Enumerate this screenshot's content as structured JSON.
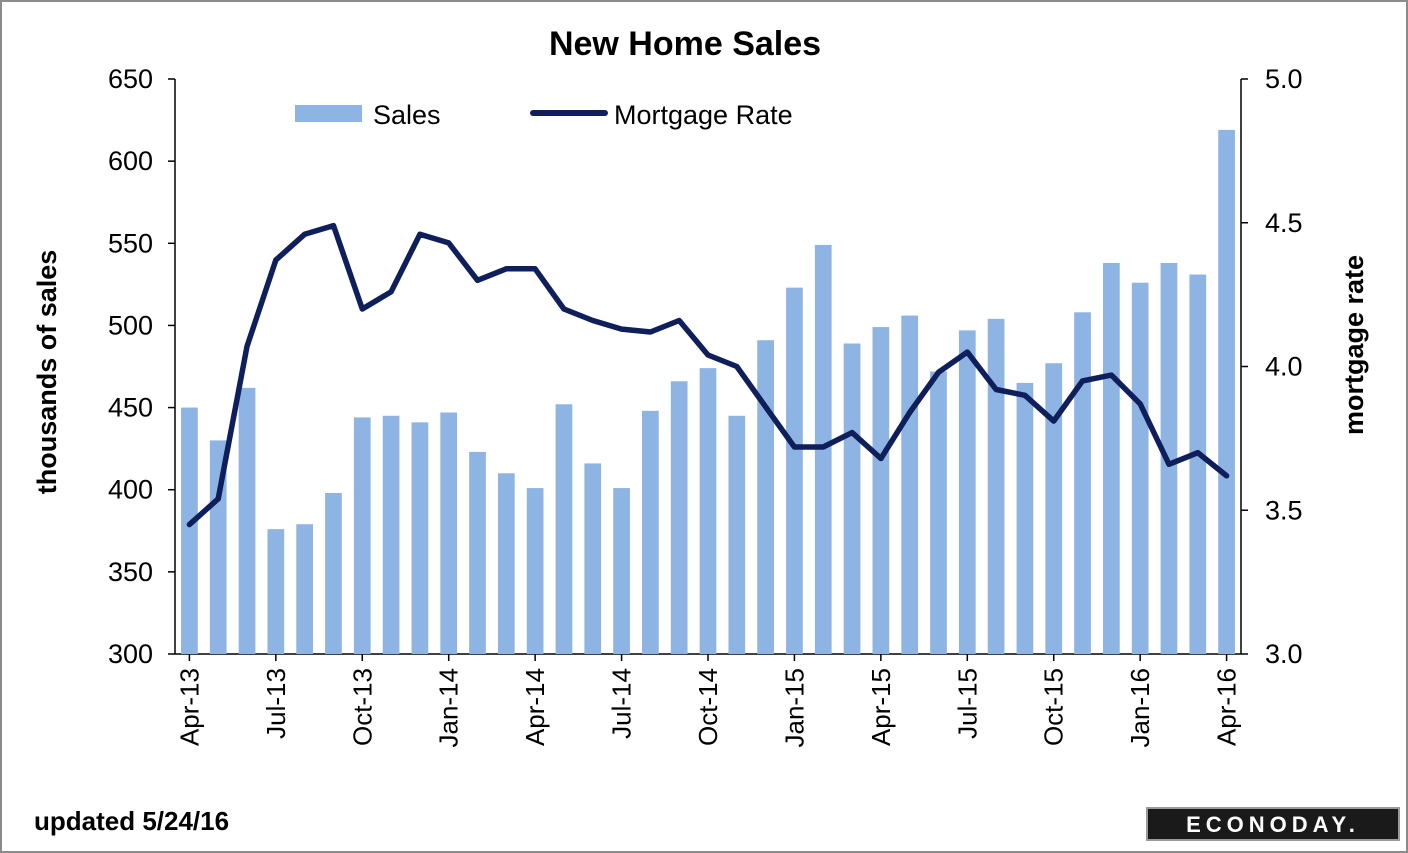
{
  "chart_data": {
    "type": "bar",
    "title": "New Home Sales",
    "ylabel": "thousands of sales",
    "y2label": "mortgage rate",
    "ylim": [
      300,
      650
    ],
    "y2lim": [
      3.0,
      5.0
    ],
    "yticks": [
      "650",
      "600",
      "550",
      "500",
      "450",
      "400",
      "350",
      "300"
    ],
    "y2ticks": [
      "5.0",
      "4.5",
      "4.0",
      "3.5",
      "3.0"
    ],
    "categories": [
      "Apr-13",
      "May-13",
      "Jun-13",
      "Jul-13",
      "Aug-13",
      "Sep-13",
      "Oct-13",
      "Nov-13",
      "Dec-13",
      "Jan-14",
      "Feb-14",
      "Mar-14",
      "Apr-14",
      "May-14",
      "Jun-14",
      "Jul-14",
      "Aug-14",
      "Sep-14",
      "Oct-14",
      "Nov-14",
      "Dec-14",
      "Jan-15",
      "Feb-15",
      "Mar-15",
      "Apr-15",
      "May-15",
      "Jun-15",
      "Jul-15",
      "Aug-15",
      "Sep-15",
      "Oct-15",
      "Nov-15",
      "Dec-15",
      "Jan-16",
      "Feb-16",
      "Mar-16",
      "Apr-16"
    ],
    "xtick_labels": [
      "Apr-13",
      "Jul-13",
      "Oct-13",
      "Jan-14",
      "Apr-14",
      "Jul-14",
      "Oct-14",
      "Jan-15",
      "Apr-15",
      "Jul-15",
      "Oct-15",
      "Jan-16",
      "Apr-16"
    ],
    "series": [
      {
        "name": "Sales",
        "type": "bar",
        "axis": "left",
        "color": "#8db4e2",
        "values": [
          450,
          430,
          462,
          376,
          379,
          398,
          444,
          445,
          441,
          447,
          423,
          410,
          401,
          452,
          416,
          401,
          448,
          466,
          474,
          445,
          491,
          523,
          549,
          489,
          499,
          506,
          472,
          497,
          504,
          465,
          477,
          508,
          538,
          526,
          538,
          531,
          619
        ]
      },
      {
        "name": "Mortgage Rate",
        "type": "line",
        "axis": "right",
        "color": "#0f1f5c",
        "values": [
          3.45,
          3.54,
          4.07,
          4.37,
          4.46,
          4.49,
          4.2,
          4.26,
          4.46,
          4.43,
          4.3,
          4.34,
          4.34,
          4.2,
          4.16,
          4.13,
          4.12,
          4.16,
          4.04,
          4.0,
          3.86,
          3.72,
          3.72,
          3.77,
          3.68,
          3.84,
          3.98,
          4.05,
          3.92,
          3.9,
          3.81,
          3.95,
          3.97,
          3.87,
          3.66,
          3.7,
          3.62
        ]
      }
    ]
  },
  "footer": {
    "updated": "updated 5/24/16",
    "brand": "ECONODAY."
  }
}
